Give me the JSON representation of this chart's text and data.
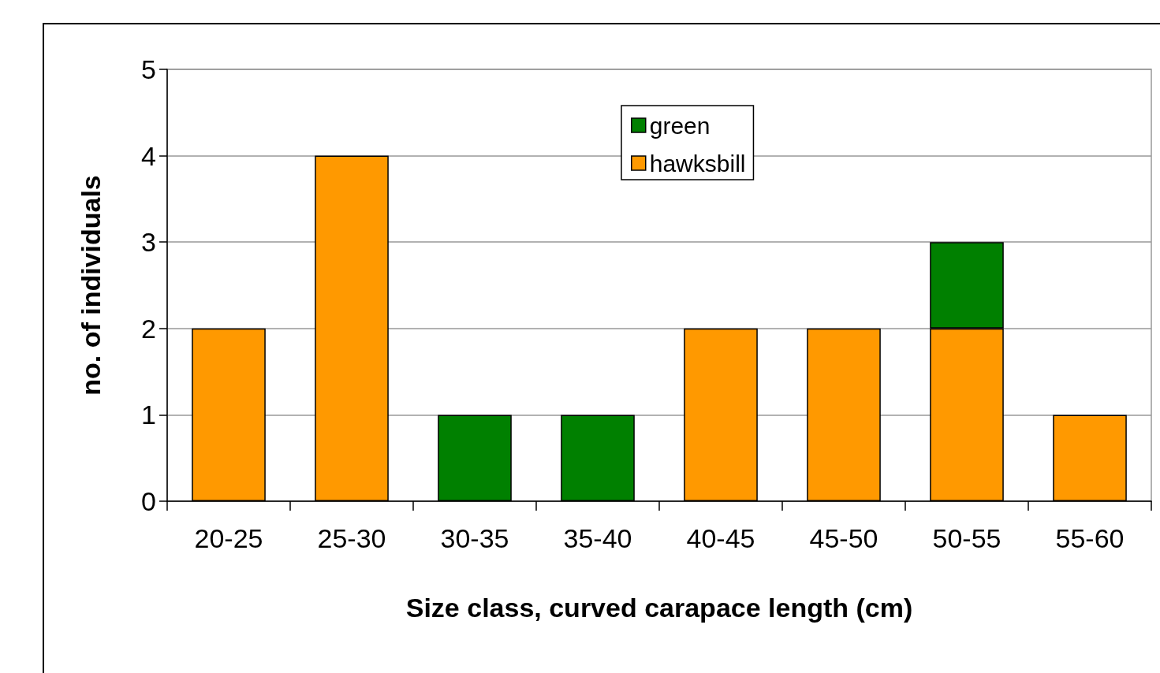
{
  "chart_data": {
    "type": "bar",
    "stacked": true,
    "xlabel": "Size class, curved carapace length (cm)",
    "ylabel": "no. of individuals",
    "categories": [
      "20-25",
      "25-30",
      "30-35",
      "35-40",
      "40-45",
      "45-50",
      "50-55",
      "55-60"
    ],
    "series": [
      {
        "name": "hawksbill",
        "color": "#ff9900",
        "values": [
          2,
          4,
          null,
          null,
          2,
          2,
          2,
          1
        ]
      },
      {
        "name": "green",
        "color": "#008000",
        "values": [
          null,
          null,
          1,
          1,
          null,
          null,
          1,
          null
        ]
      }
    ],
    "ylim": [
      0,
      5
    ],
    "yticks": [
      0,
      1,
      2,
      3,
      4,
      5
    ],
    "grid": "y",
    "legend": "top"
  }
}
